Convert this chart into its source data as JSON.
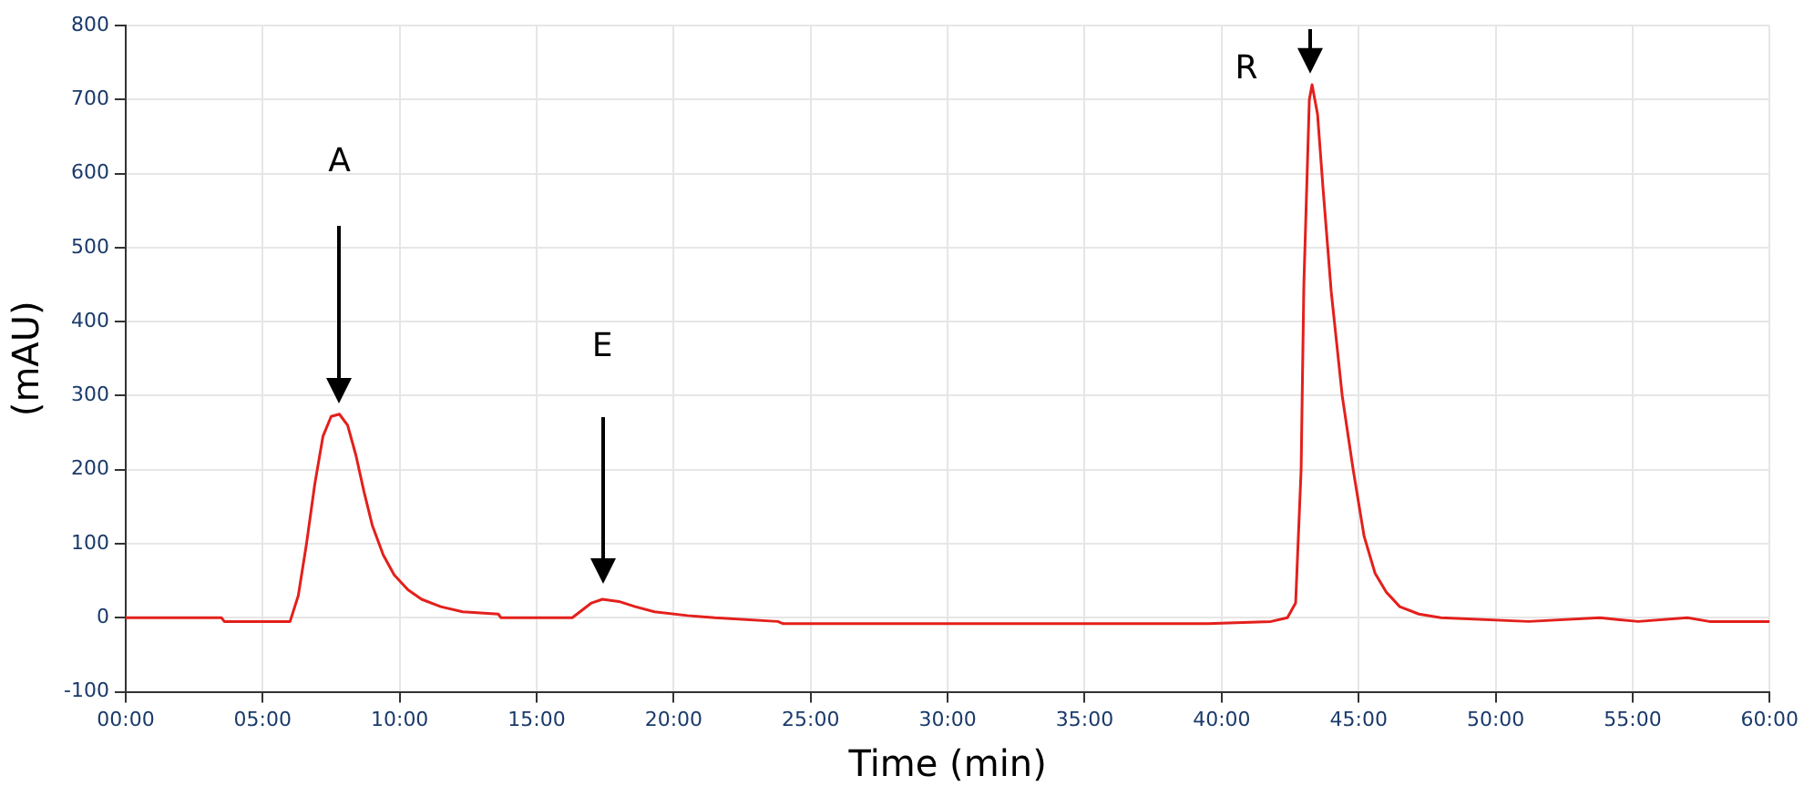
{
  "chart_data": {
    "type": "line",
    "xlabel": "Time (min)",
    "ylabel": "(mAU)",
    "x": [
      0,
      3.5,
      3.6,
      6.0,
      6.3,
      6.6,
      6.9,
      7.2,
      7.5,
      7.8,
      8.1,
      8.4,
      8.7,
      9.0,
      9.4,
      9.8,
      10.3,
      10.8,
      11.5,
      12.3,
      13.6,
      13.7,
      16.3,
      17.0,
      17.4,
      18.0,
      18.6,
      19.3,
      20.5,
      21.5,
      23.8,
      24.0,
      39.5,
      41.8,
      42.4,
      42.7,
      42.9,
      43.0,
      43.2,
      43.3,
      43.5,
      43.7,
      44.0,
      44.4,
      44.8,
      45.2,
      45.6,
      46.0,
      46.5,
      47.2,
      48.0,
      51.2,
      53.8,
      55.2,
      57.0,
      57.8,
      60
    ],
    "series": [
      {
        "color": "#e3201c",
        "values": [
          0,
          0,
          -5,
          -5,
          30,
          100,
          180,
          245,
          272,
          275,
          260,
          220,
          170,
          125,
          85,
          58,
          38,
          25,
          15,
          8,
          5,
          0,
          0,
          20,
          25,
          22,
          15,
          8,
          3,
          0,
          -5,
          -8,
          -8,
          -5,
          0,
          20,
          200,
          450,
          700,
          720,
          680,
          580,
          440,
          300,
          200,
          110,
          60,
          35,
          15,
          5,
          0,
          -5,
          0,
          -5,
          0,
          -5,
          -5
        ]
      }
    ],
    "xlim": [
      0,
      60
    ],
    "xticks": [
      {
        "value": 0,
        "label": "00:00"
      },
      {
        "value": 5,
        "label": "05:00"
      },
      {
        "value": 10,
        "label": "10:00"
      },
      {
        "value": 15,
        "label": "15:00"
      },
      {
        "value": 20,
        "label": "20:00"
      },
      {
        "value": 25,
        "label": "25:00"
      },
      {
        "value": 30,
        "label": "30:00"
      },
      {
        "value": 35,
        "label": "35:00"
      },
      {
        "value": 40,
        "label": "40:00"
      },
      {
        "value": 45,
        "label": "45:00"
      },
      {
        "value": 50,
        "label": "50:00"
      },
      {
        "value": 55,
        "label": "55:00"
      },
      {
        "value": 60,
        "label": "60:00"
      }
    ],
    "ylim": [
      -100,
      800
    ],
    "yticks": [
      -100,
      0,
      100,
      200,
      300,
      400,
      500,
      600,
      700,
      800
    ],
    "annotations": [
      "A",
      "E",
      "R"
    ],
    "grid": true,
    "legend": false,
    "marker": "none",
    "line_style": "solid"
  }
}
